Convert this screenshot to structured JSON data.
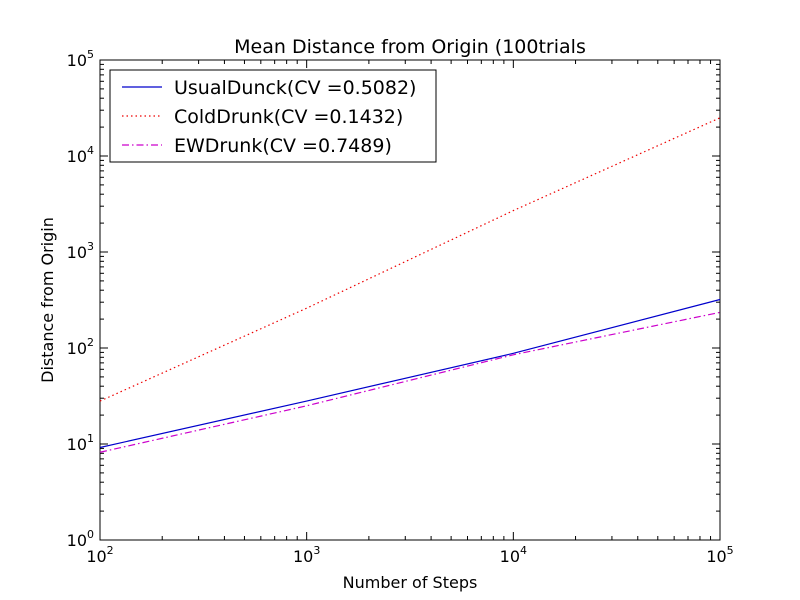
{
  "chart_data": {
    "type": "line",
    "title": "Mean Distance from Origin (100trials",
    "xlabel": "Number of Steps",
    "ylabel": "Distance from Origin",
    "xscale": "log",
    "yscale": "log",
    "xlim": [
      100,
      100000
    ],
    "ylim": [
      1,
      100000
    ],
    "grid": false,
    "legend_position": "top-left",
    "x_ticks": [
      {
        "base": "10",
        "exp": "2"
      },
      {
        "base": "10",
        "exp": "3"
      },
      {
        "base": "10",
        "exp": "4"
      },
      {
        "base": "10",
        "exp": "5"
      }
    ],
    "y_ticks": [
      {
        "base": "10",
        "exp": "0"
      },
      {
        "base": "10",
        "exp": "1"
      },
      {
        "base": "10",
        "exp": "2"
      },
      {
        "base": "10",
        "exp": "3"
      },
      {
        "base": "10",
        "exp": "4"
      },
      {
        "base": "10",
        "exp": "5"
      }
    ],
    "series": [
      {
        "name": "UsualDunck(CV =0.5082)",
        "color": "#0000cc",
        "linestyle": "solid",
        "x": [
          100,
          1000,
          10000,
          100000
        ],
        "y": [
          9.2,
          28,
          88,
          320
        ]
      },
      {
        "name": "ColdDrunk(CV =0.1432)",
        "color": "#ee0000",
        "linestyle": "dotted",
        "x": [
          100,
          1000,
          10000,
          100000
        ],
        "y": [
          28,
          260,
          2700,
          25000
        ]
      },
      {
        "name": "EWDrunk(CV =0.7489)",
        "color": "#cc00cc",
        "linestyle": "dashdot",
        "x": [
          100,
          1000,
          10000,
          100000
        ],
        "y": [
          8.2,
          25,
          85,
          235
        ]
      }
    ]
  }
}
